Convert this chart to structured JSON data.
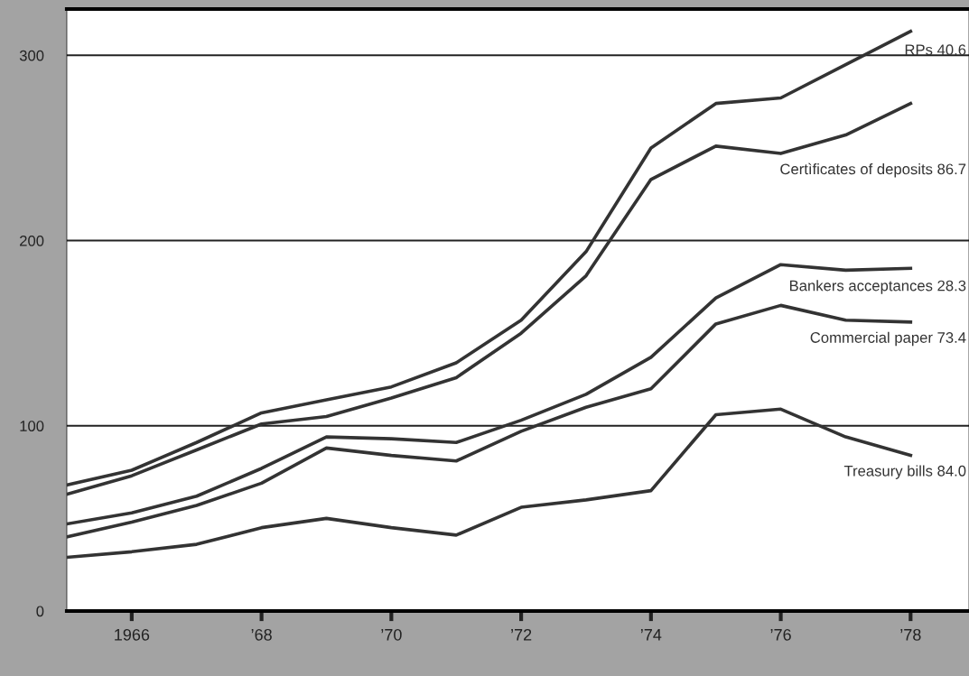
{
  "chart_data": {
    "type": "line",
    "x": [
      1965,
      1966,
      1967,
      1968,
      1969,
      1970,
      1971,
      1972,
      1973,
      1974,
      1975,
      1976,
      1977,
      1978
    ],
    "series": [
      {
        "name": "RPs 40.6",
        "color": "#333333",
        "values": [
          68,
          76,
          91,
          107,
          114,
          121,
          134,
          157,
          194,
          250,
          274,
          277,
          295,
          313
        ]
      },
      {
        "name": "Certìficates of deposits 86.7",
        "color": "#333333",
        "values": [
          63,
          73,
          87,
          101,
          105,
          115,
          126,
          150,
          181,
          233,
          251,
          247,
          257,
          274
        ]
      },
      {
        "name": "Bankers acceptances 28.3",
        "color": "#333333",
        "values": [
          47,
          53,
          62,
          77,
          94,
          93,
          91,
          103,
          117,
          137,
          169,
          187,
          184,
          185
        ]
      },
      {
        "name": "Commercial paper 73.4",
        "color": "#333333",
        "values": [
          40,
          48,
          57,
          69,
          88,
          84,
          81,
          97,
          110,
          120,
          155,
          165,
          157,
          156
        ]
      },
      {
        "name": "Treasury bills 84.0",
        "color": "#333333",
        "values": [
          29,
          32,
          36,
          45,
          50,
          45,
          41,
          56,
          60,
          65,
          106,
          109,
          94,
          84
        ]
      }
    ],
    "xlim": [
      1965,
      1978.9
    ],
    "xticks": [
      {
        "value": 1966,
        "label": "1966"
      },
      {
        "value": 1968,
        "label": "’68"
      },
      {
        "value": 1970,
        "label": "’70"
      },
      {
        "value": 1972,
        "label": "’72"
      },
      {
        "value": 1974,
        "label": "’74"
      },
      {
        "value": 1976,
        "label": "’76"
      },
      {
        "value": 1978,
        "label": "’78"
      }
    ],
    "ylim": [
      0,
      325
    ],
    "yticks": [
      0,
      100,
      200,
      300
    ],
    "grid": "y",
    "legend": false,
    "marker": "none",
    "line_style": "solid"
  }
}
